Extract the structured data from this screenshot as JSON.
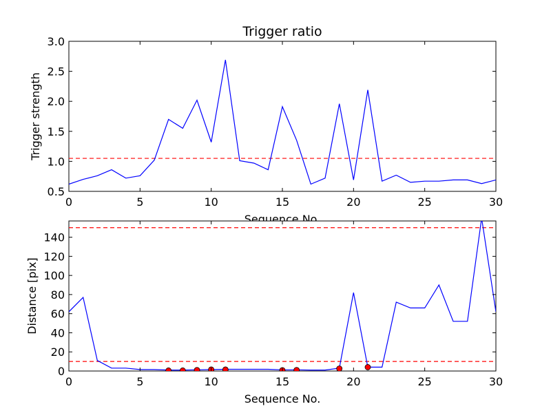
{
  "chart_data": [
    {
      "type": "line",
      "title": "Trigger ratio",
      "xlabel": "Sequence No.",
      "ylabel": "Trigger strength",
      "xlim": [
        0,
        30
      ],
      "ylim": [
        0.5,
        3.0
      ],
      "xticks": [
        "0",
        "5",
        "10",
        "15",
        "20",
        "25",
        "30"
      ],
      "yticks": [
        "0.5",
        "1.0",
        "1.5",
        "2.0",
        "2.5",
        "3.0"
      ],
      "grid": false,
      "series": [
        {
          "color": "#0000ff",
          "x": [
            0,
            1,
            2,
            3,
            4,
            5,
            6,
            7,
            8,
            9,
            10,
            11,
            12,
            13,
            14,
            15,
            16,
            17,
            18,
            19,
            20,
            21,
            22,
            23,
            24,
            25,
            26,
            27,
            28,
            29,
            30
          ],
          "y": [
            0.62,
            0.7,
            0.76,
            0.86,
            0.72,
            0.76,
            1.02,
            1.7,
            1.55,
            2.02,
            1.32,
            2.69,
            1.01,
            0.97,
            0.86,
            1.91,
            1.35,
            0.62,
            0.72,
            1.96,
            0.69,
            2.19,
            0.67,
            0.77,
            0.65,
            0.67,
            0.67,
            0.69,
            0.69,
            0.63,
            0.69
          ]
        }
      ],
      "thresholds": [
        {
          "y": 1.05,
          "color": "#ff0000",
          "style": "dashed"
        }
      ]
    },
    {
      "type": "line",
      "title": "",
      "xlabel": "Sequence No.",
      "ylabel": "Distance [pix]",
      "xlim": [
        0,
        30
      ],
      "ylim": [
        0,
        157
      ],
      "xticks": [
        "0",
        "5",
        "10",
        "15",
        "20",
        "25",
        "30"
      ],
      "yticks": [
        "0",
        "20",
        "40",
        "60",
        "80",
        "100",
        "120",
        "140"
      ],
      "grid": false,
      "series": [
        {
          "color": "#0000ff",
          "x": [
            0,
            1,
            2,
            3,
            4,
            5,
            6,
            7,
            8,
            9,
            10,
            11,
            12,
            13,
            14,
            15,
            16,
            17,
            18,
            19,
            20,
            21,
            22,
            23,
            24,
            25,
            26,
            27,
            28,
            29,
            30
          ],
          "y": [
            62,
            77,
            11,
            3,
            3,
            1.5,
            1.5,
            1,
            1,
            1.2,
            1.5,
            1.8,
            1.8,
            1.8,
            1.8,
            1.2,
            1.2,
            1,
            1,
            3,
            82,
            4,
            4,
            72,
            66,
            66,
            90,
            52,
            52,
            160,
            62
          ]
        }
      ],
      "markers": {
        "color": "#ff0000",
        "x": [
          7,
          8,
          9,
          10,
          11,
          15,
          16,
          19,
          21
        ],
        "y": [
          0.5,
          0.5,
          1,
          1.5,
          1.5,
          0.8,
          1,
          2.5,
          4
        ]
      },
      "thresholds": [
        {
          "y": 150,
          "color": "#ff0000",
          "style": "dashed"
        },
        {
          "y": 10,
          "color": "#ff0000",
          "style": "dashed"
        }
      ]
    }
  ]
}
